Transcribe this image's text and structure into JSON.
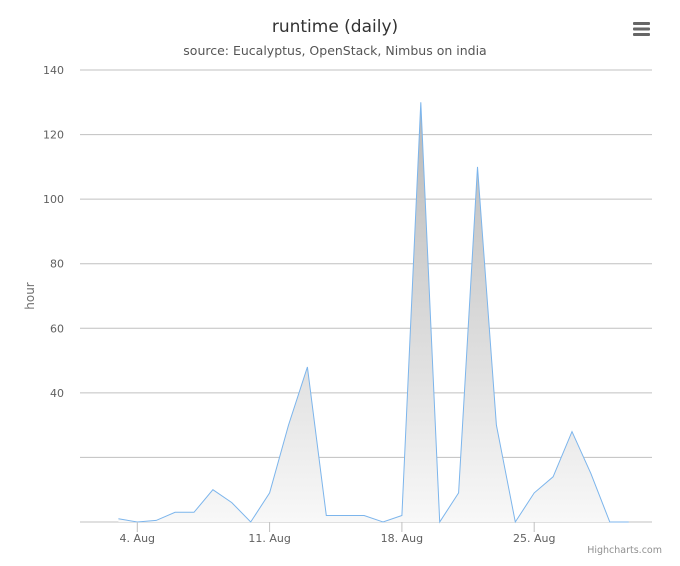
{
  "chart_data": {
    "type": "area",
    "title": "runtime (daily)",
    "subtitle": "source: Eucalyptus, OpenStack, Nimbus on india",
    "ylabel": "hour",
    "xlabel": "",
    "ylim": [
      0,
      140
    ],
    "yticks": [
      40,
      60,
      80,
      100,
      120,
      140
    ],
    "xlim": [
      "2014-08-01",
      "2014-08-31"
    ],
    "xticks": [
      {
        "date": "2014-08-04",
        "label": "4. Aug"
      },
      {
        "date": "2014-08-11",
        "label": "11. Aug"
      },
      {
        "date": "2014-08-18",
        "label": "18. Aug"
      },
      {
        "date": "2014-08-25",
        "label": "25. Aug"
      }
    ],
    "grid": true,
    "legend": "none",
    "colors": {
      "line": "#7cb5ec",
      "fill_top": "#b8b8b8",
      "fill_bottom": "#f8f8f8",
      "grid": "#c0c0c0"
    },
    "series": [
      {
        "x": [
          "2014-08-03",
          "2014-08-04",
          "2014-08-05",
          "2014-08-06",
          "2014-08-07",
          "2014-08-08",
          "2014-08-09",
          "2014-08-10",
          "2014-08-11",
          "2014-08-12",
          "2014-08-13",
          "2014-08-14",
          "2014-08-15",
          "2014-08-16",
          "2014-08-17",
          "2014-08-18",
          "2014-08-19",
          "2014-08-20",
          "2014-08-21",
          "2014-08-22",
          "2014-08-23",
          "2014-08-24",
          "2014-08-25",
          "2014-08-26",
          "2014-08-27",
          "2014-08-28",
          "2014-08-29",
          "2014-08-30"
        ],
        "values": [
          1,
          0,
          0.5,
          3,
          3,
          10,
          6,
          0,
          9,
          30,
          48,
          2,
          2,
          2,
          0,
          2,
          130,
          0,
          9,
          110,
          30,
          0,
          9,
          14,
          28,
          15,
          0,
          0
        ]
      }
    ]
  },
  "credits": "Highcharts.com",
  "menu_icon": "hamburger-menu-icon"
}
